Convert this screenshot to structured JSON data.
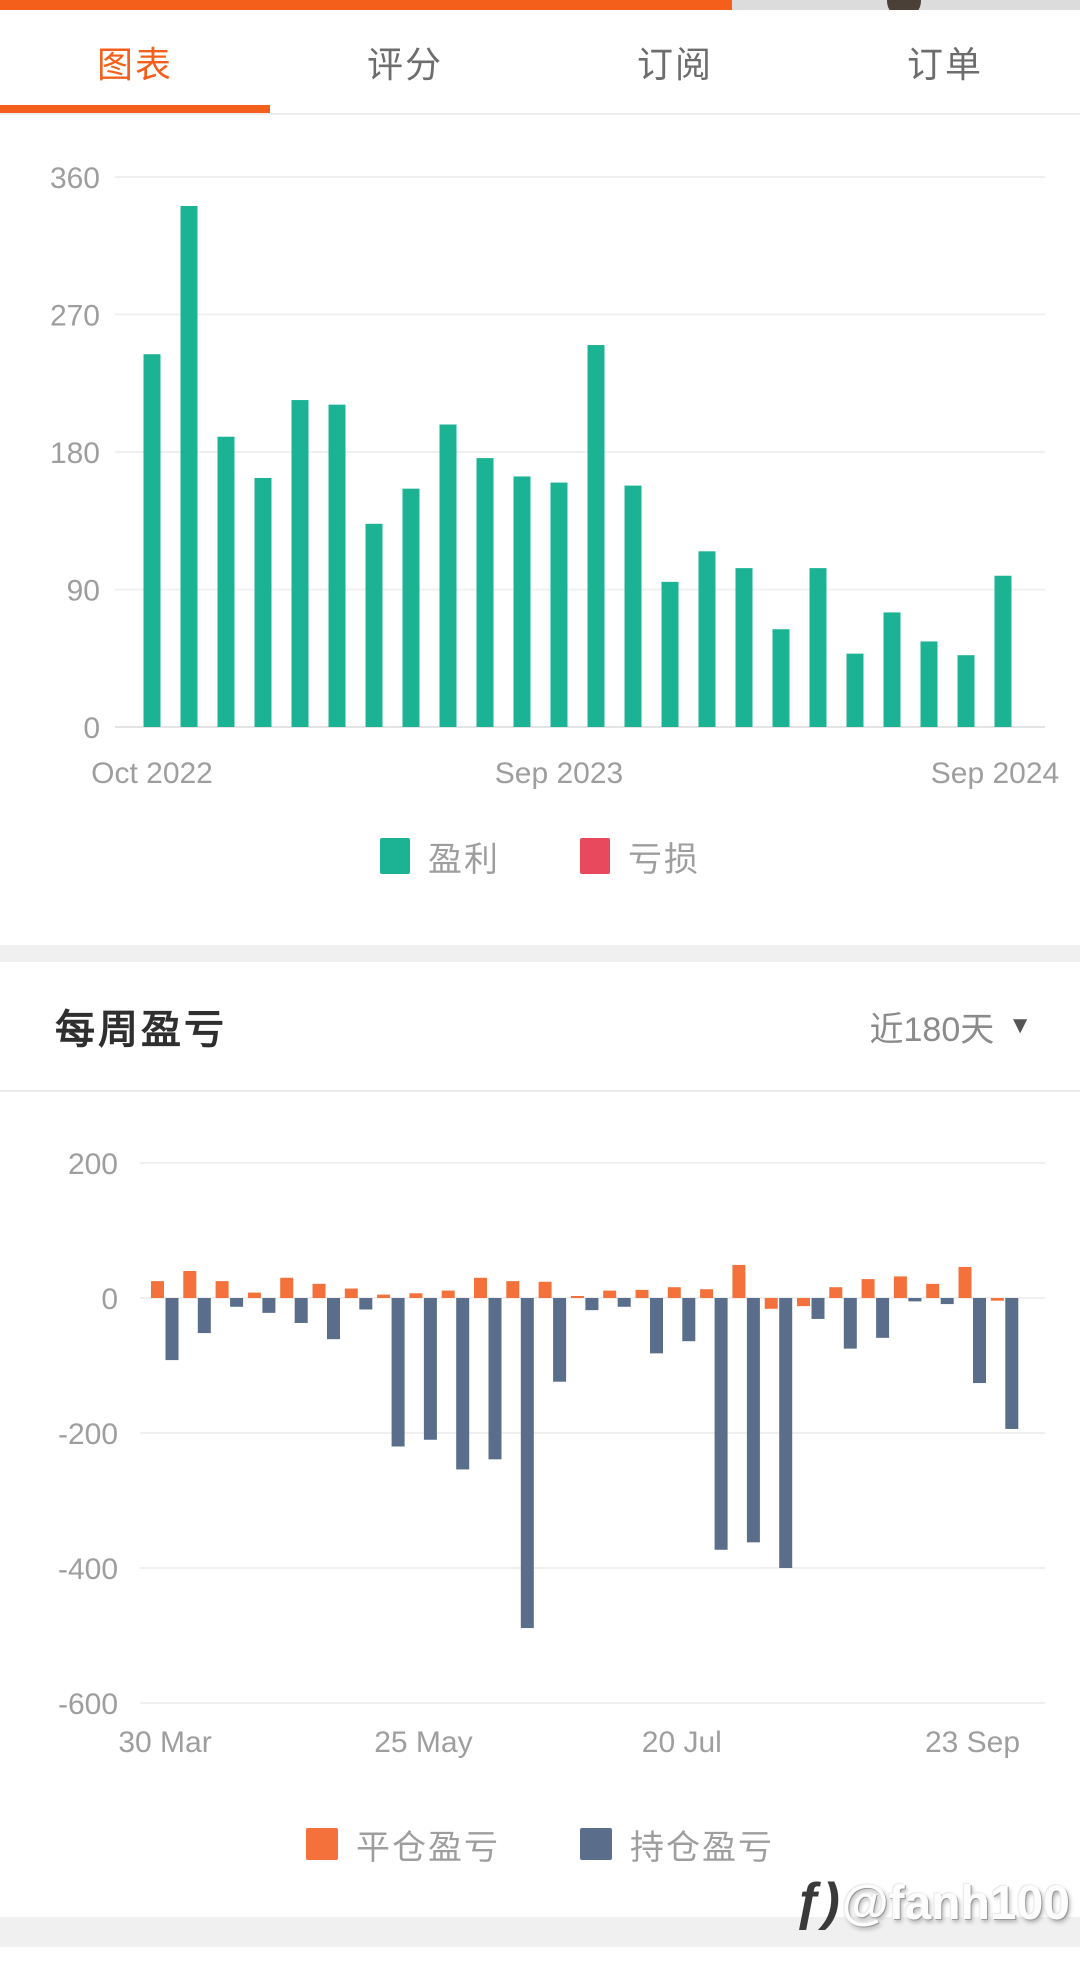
{
  "status_bar": {
    "accent_color": "#f4601c"
  },
  "tab_bar": {
    "active_color": "#f4601c",
    "items": [
      {
        "label": "图表",
        "active": true
      },
      {
        "label": "评分",
        "active": false
      },
      {
        "label": "订阅",
        "active": false
      },
      {
        "label": "订单",
        "active": false
      }
    ]
  },
  "weekly_header": {
    "title": "每周盈亏",
    "range_label": "近180天",
    "chevron": "▼"
  },
  "watermark": {
    "logo": "ƒ)",
    "handle": "@fanh100"
  },
  "theme": {
    "grid_color": "#f0f0f0",
    "baseline_color": "#e4e4e4",
    "axis_label_color": "#9e9e9e"
  },
  "chart_data": [
    {
      "id": "monthly_pl",
      "type": "bar",
      "title": "",
      "categories": [
        "Oct 2022",
        "Nov 2022",
        "Dec 2022",
        "Jan 2023",
        "Feb 2023",
        "Mar 2023",
        "Apr 2023",
        "May 2023",
        "Jun 2023",
        "Jul 2023",
        "Aug 2023",
        "Sep 2023",
        "Oct 2023",
        "Nov 2023",
        "Dec 2023",
        "Jan 2024",
        "Feb 2024",
        "Mar 2024",
        "Apr 2024",
        "May 2024",
        "Jun 2024",
        "Jul 2024",
        "Aug 2024",
        "Sep 2024"
      ],
      "series": [
        {
          "name": "盈利",
          "color": "#1bb394",
          "values": [
            244,
            341,
            190,
            163,
            214,
            211,
            133,
            156,
            198,
            176,
            164,
            160,
            250,
            158,
            95,
            115,
            104,
            64,
            104,
            48,
            75,
            56,
            47,
            99
          ]
        },
        {
          "name": "亏损",
          "color": "#e8495c",
          "values": [
            0,
            0,
            0,
            0,
            0,
            0,
            0,
            0,
            0,
            0,
            0,
            0,
            0,
            0,
            0,
            0,
            0,
            0,
            0,
            0,
            0,
            0,
            0,
            0
          ]
        }
      ],
      "ylim": [
        0,
        360
      ],
      "y_ticks": [
        360,
        270,
        180,
        90,
        0
      ],
      "x_tick_labels": [
        {
          "index": 0,
          "label": "Oct 2022"
        },
        {
          "index": 11,
          "label": "Sep 2023"
        },
        {
          "index": 23,
          "label": "Sep 2024"
        }
      ],
      "grid": true,
      "legend_position": "bottom"
    },
    {
      "id": "weekly_pl",
      "type": "bar",
      "title": "每周盈亏",
      "range": "近180天",
      "n_bars": 27,
      "series": [
        {
          "name": "平仓盈亏",
          "color": "#f4713c",
          "values": [
            25,
            40,
            25,
            8,
            30,
            21,
            14,
            5,
            7,
            11,
            30,
            25,
            24,
            2,
            11,
            12,
            16,
            13,
            49,
            -16,
            -12,
            16,
            28,
            32,
            21,
            46,
            -4
          ]
        },
        {
          "name": "持仓盈亏",
          "color": "#5a6d8b",
          "values": [
            -92,
            -52,
            -13,
            -22,
            -37,
            -61,
            -17,
            -220,
            -210,
            -254,
            -239,
            -489,
            -124,
            -18,
            -13,
            -82,
            -64,
            -373,
            -362,
            -400,
            -31,
            -75,
            -59,
            -5,
            -9,
            -126,
            -194
          ]
        }
      ],
      "ylim": [
        -600,
        200
      ],
      "y_ticks": [
        200,
        0,
        -200,
        -400,
        -600
      ],
      "x_tick_labels": [
        {
          "index": 0,
          "label": "30 Mar"
        },
        {
          "index": 8,
          "label": "25 May"
        },
        {
          "index": 16,
          "label": "20 Jul"
        },
        {
          "index": 25,
          "label": "23 Sep"
        }
      ],
      "grid": true,
      "legend_position": "bottom"
    }
  ]
}
